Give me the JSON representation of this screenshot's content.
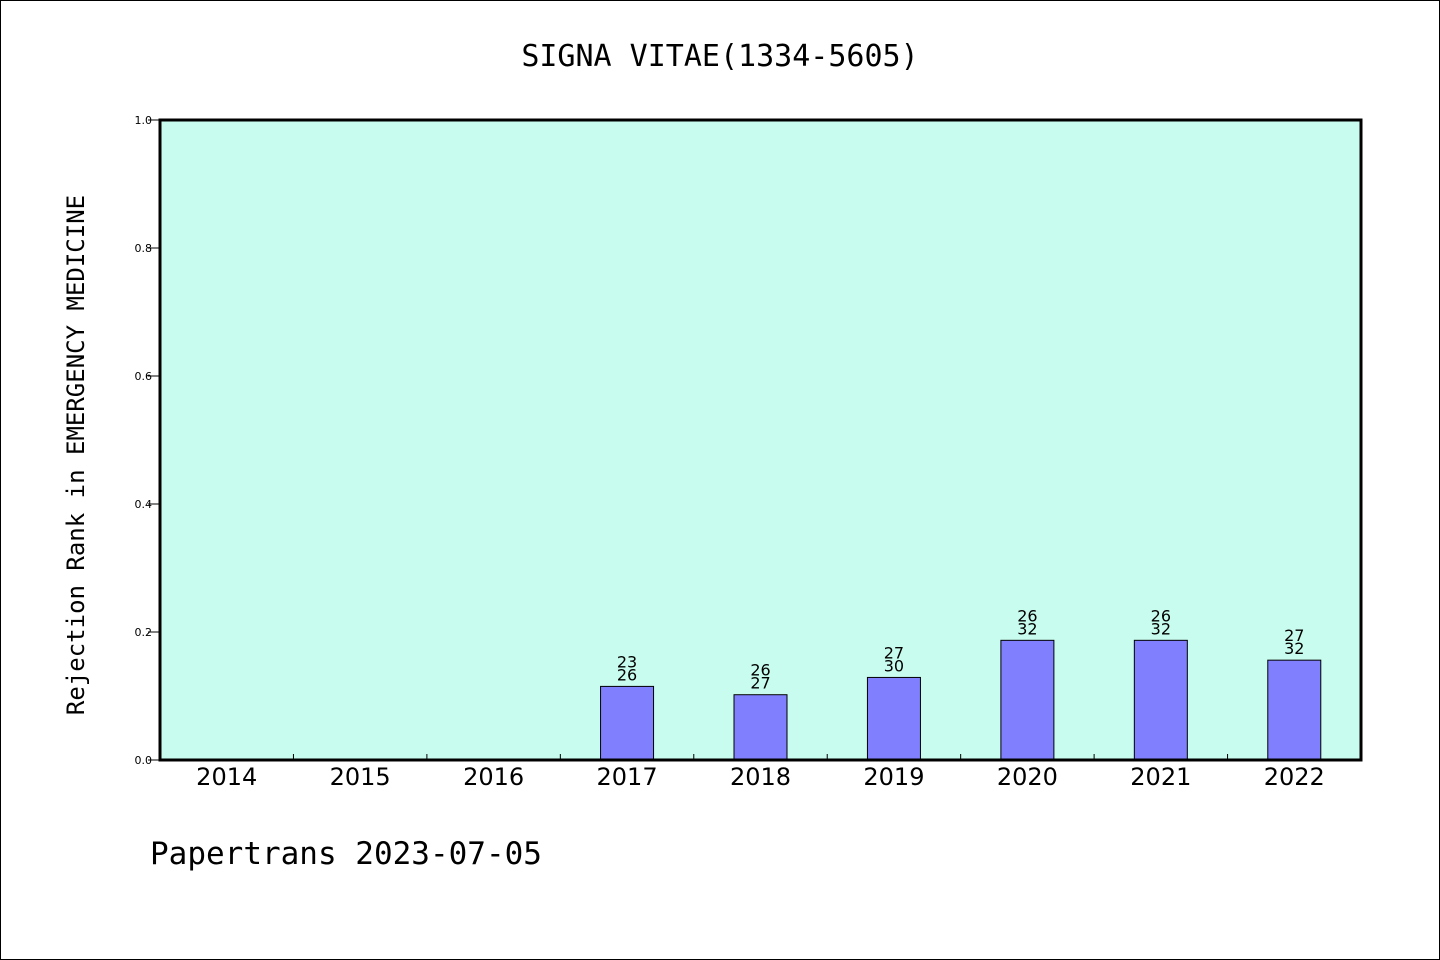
{
  "chart_data": {
    "type": "bar",
    "title": "SIGNA VITAE(1334-5605)",
    "ylabel": "Rejection Rank in EMERGENCY MEDICINE",
    "xlabel": "",
    "categories": [
      "2014",
      "2015",
      "2016",
      "2017",
      "2018",
      "2019",
      "2020",
      "2021",
      "2022"
    ],
    "values": [
      null,
      null,
      null,
      0.115,
      0.102,
      0.129,
      0.187,
      0.187,
      0.156
    ],
    "labels_top": [
      "",
      "",
      "",
      "23",
      "26",
      "27",
      "26",
      "26",
      "27"
    ],
    "labels_bottom": [
      "",
      "",
      "",
      "26",
      "27",
      "30",
      "32",
      "32",
      "32"
    ],
    "ylim": [
      0,
      1.0
    ],
    "yticks": [
      "0.0",
      "0.2",
      "0.4",
      "0.6",
      "0.8",
      "1.0"
    ],
    "grid": false,
    "plot_background": "#c8fcee",
    "bar_color": "#8080ff"
  },
  "footer": {
    "text": "Papertrans 2023-07-05"
  }
}
